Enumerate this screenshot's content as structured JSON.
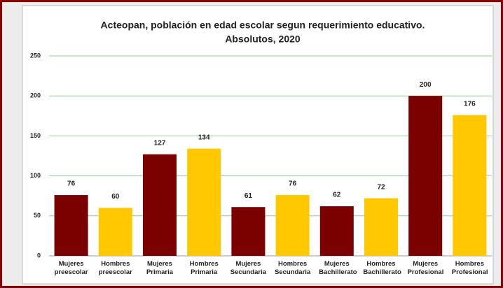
{
  "chart_data": {
    "type": "bar",
    "title": "Acteopan, población en edad escolar segun requerimiento educativo.",
    "subtitle": "Absolutos, 2020",
    "categories": [
      "Mujeres preescolar",
      "Hombres preescolar",
      "Mujeres Primaria",
      "Hombres Primaria",
      "Mujeres Secundaria",
      "Hombres Secundaria",
      "Mujeres Bachillerato",
      "Hombres Bachillerato",
      "Mujeres Profesional",
      "Hombres Profesional"
    ],
    "values": [
      76,
      60,
      127,
      134,
      61,
      76,
      62,
      72,
      200,
      176
    ],
    "colors": [
      "#7b0000",
      "#ffc800",
      "#7b0000",
      "#ffc800",
      "#7b0000",
      "#ffc800",
      "#7b0000",
      "#ffc800",
      "#7b0000",
      "#ffc800"
    ],
    "ylim": [
      0,
      250
    ],
    "yticks": [
      0,
      50,
      100,
      150,
      200,
      250
    ],
    "grid": true
  }
}
